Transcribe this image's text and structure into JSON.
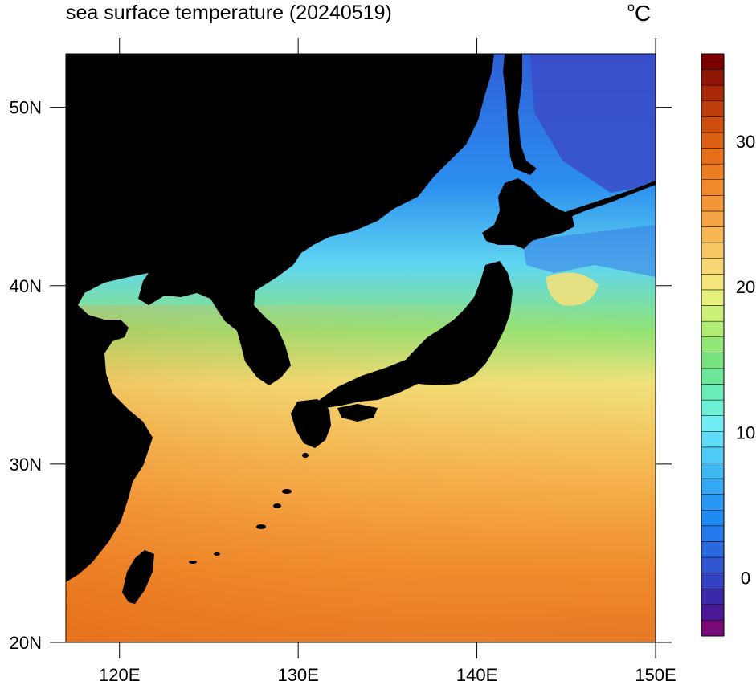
{
  "title": "sea surface temperature (20240519)",
  "unit": "°C",
  "map": {
    "lon_range": [
      117,
      150
    ],
    "lat_range": [
      20,
      53
    ],
    "lon_ticks": [
      {
        "value": 120,
        "label": "120E"
      },
      {
        "value": 130,
        "label": "130E"
      },
      {
        "value": 140,
        "label": "140E"
      },
      {
        "value": 150,
        "label": "150E"
      }
    ],
    "lat_ticks": [
      {
        "value": 50,
        "label": "50N"
      },
      {
        "value": 40,
        "label": "40N"
      },
      {
        "value": 30,
        "label": "30N"
      },
      {
        "value": 20,
        "label": "20N"
      }
    ],
    "land_color": "#000000"
  },
  "colorbar": {
    "range": [
      -4,
      36
    ],
    "step": 1,
    "labels": [
      {
        "value": 30,
        "label": "30"
      },
      {
        "value": 20,
        "label": "20"
      },
      {
        "value": 10,
        "label": "10"
      },
      {
        "value": 0,
        "label": "0"
      }
    ],
    "colors": [
      "#7a0a7a",
      "#4b1898",
      "#3a2aa8",
      "#3340c0",
      "#2f55d0",
      "#2a68e0",
      "#2479ea",
      "#1f8af2",
      "#2898f4",
      "#34a8f4",
      "#3eb8f2",
      "#4ecaf4",
      "#60dcf6",
      "#70eef4",
      "#6ef0d6",
      "#6aecb8",
      "#6ce698",
      "#78e27e",
      "#92e676",
      "#b0ec74",
      "#ccf078",
      "#e4f07a",
      "#f4e67a",
      "#f8d872",
      "#f8c864",
      "#f6b652",
      "#f4a444",
      "#f29638",
      "#f08a2c",
      "#ec7e22",
      "#e6701a",
      "#dc6014",
      "#ce4e0e",
      "#bc3c0a",
      "#a82806",
      "#8e1404",
      "#7a0000"
    ]
  }
}
